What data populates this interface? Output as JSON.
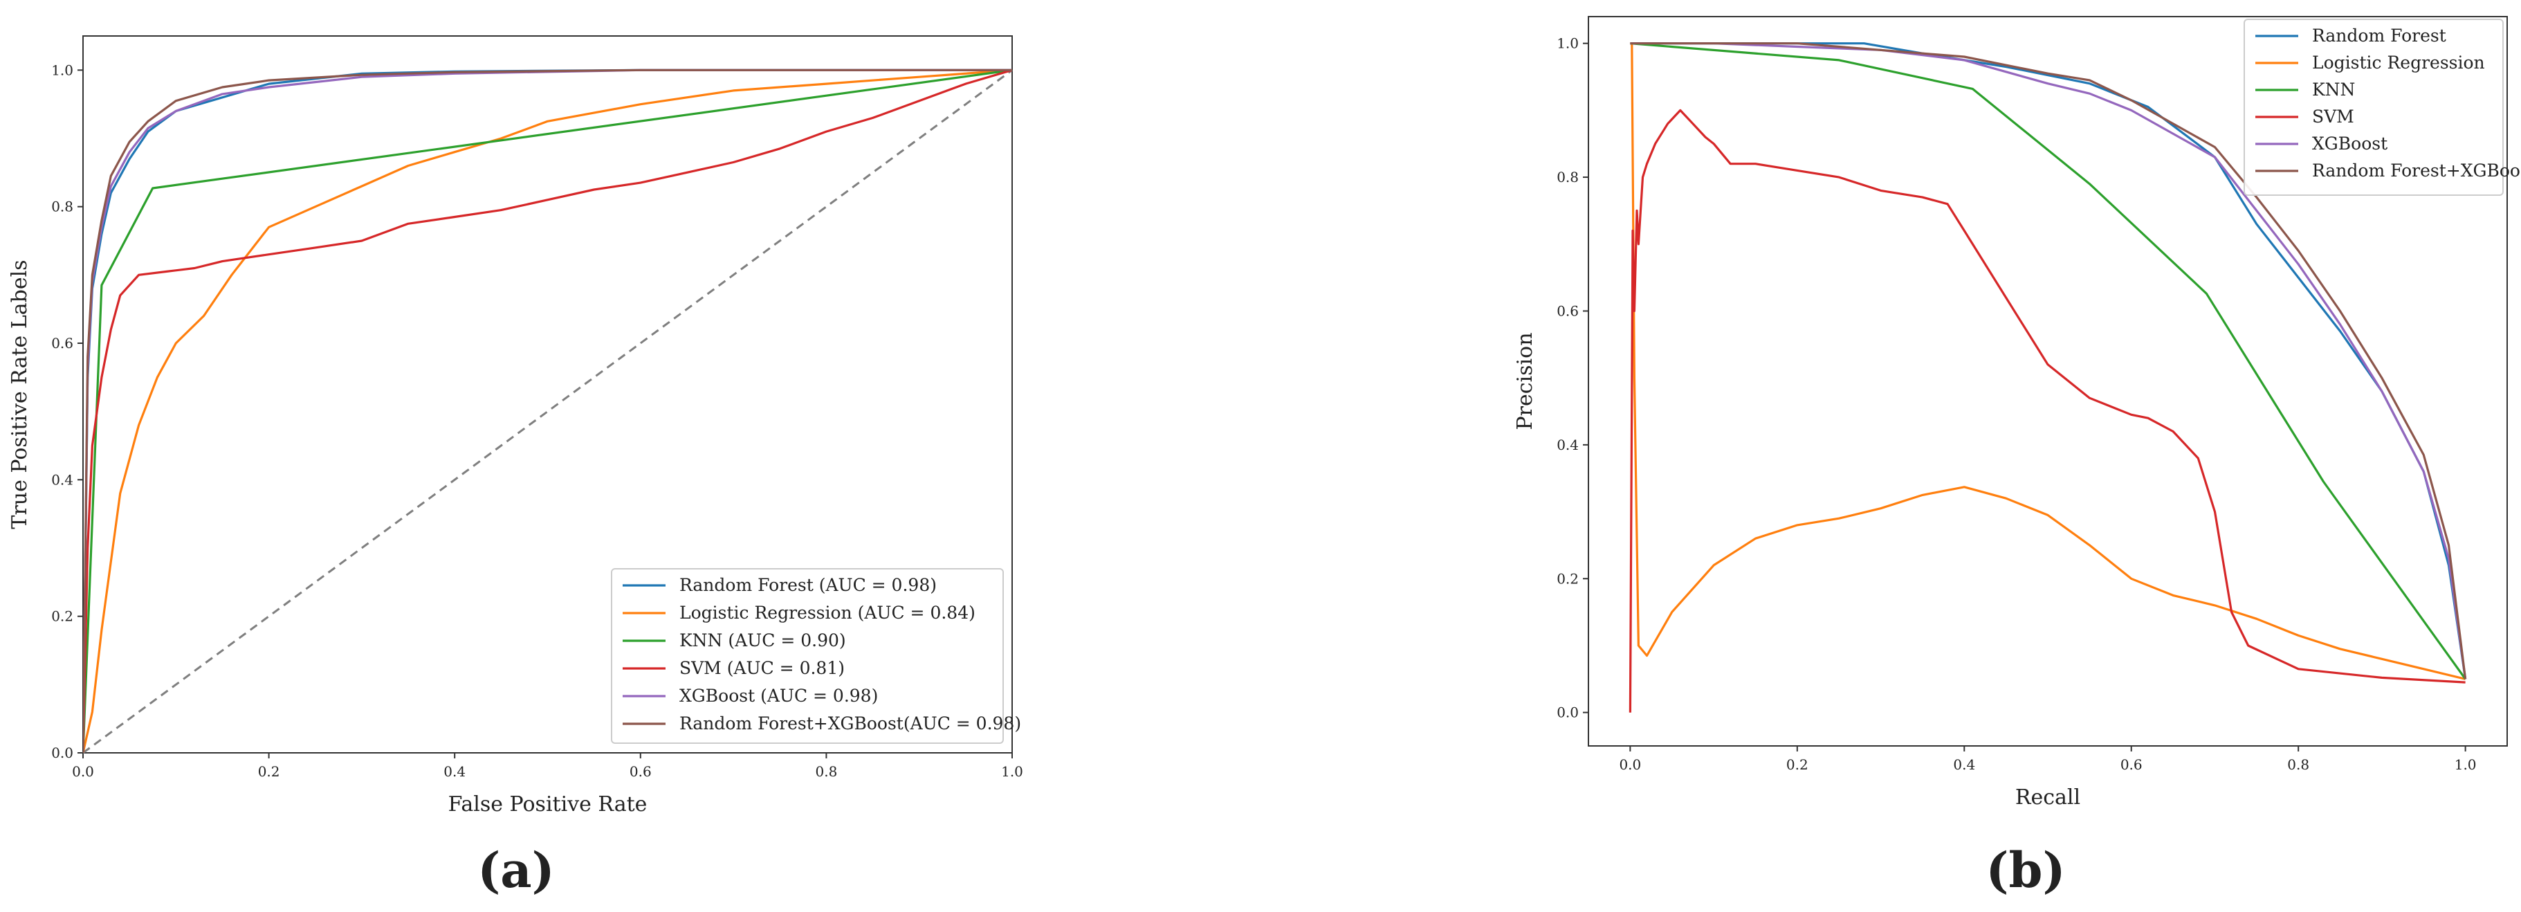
{
  "colors": {
    "random_forest": "#1f77b4",
    "logistic_regression": "#ff7f0e",
    "knn": "#2ca02c",
    "svm": "#d62728",
    "xgboost": "#9467bd",
    "rf_xgboost": "#8c564b",
    "diagonal": "#7f7f7f"
  },
  "panel_labels": [
    "(a)",
    "(b)"
  ],
  "chart_data": [
    {
      "type": "line",
      "panel": "(a)",
      "title": "",
      "xlabel": "False Positive Rate",
      "ylabel": "True Positive Rate Labels",
      "xlim": [
        0,
        1
      ],
      "ylim": [
        0,
        1.05
      ],
      "xticks": [
        "0.0",
        "0.2",
        "0.4",
        "0.6",
        "0.8",
        "1.0"
      ],
      "yticks": [
        "0.0",
        "0.2",
        "0.4",
        "0.6",
        "0.8",
        "1.0"
      ],
      "grid": false,
      "legend_position": "bottom-right",
      "reference_line": {
        "x": [
          0,
          1
        ],
        "y": [
          0,
          1
        ],
        "style": "dashed"
      },
      "series": [
        {
          "name": "Random Forest (AUC = 0.98)",
          "color_key": "random_forest",
          "x": [
            0,
            0.005,
            0.01,
            0.02,
            0.03,
            0.05,
            0.07,
            0.1,
            0.15,
            0.2,
            0.3,
            0.4,
            0.6,
            0.8,
            1.0
          ],
          "y": [
            0,
            0.55,
            0.68,
            0.76,
            0.82,
            0.87,
            0.91,
            0.94,
            0.96,
            0.98,
            0.995,
            0.998,
            1.0,
            1.0,
            1.0
          ]
        },
        {
          "name": "Logistic Regression (AUC = 0.84)",
          "color_key": "logistic_regression",
          "x": [
            0,
            0.01,
            0.02,
            0.04,
            0.06,
            0.08,
            0.1,
            0.13,
            0.16,
            0.2,
            0.25,
            0.3,
            0.35,
            0.4,
            0.45,
            0.5,
            0.6,
            0.7,
            0.8,
            0.9,
            1.0
          ],
          "y": [
            0,
            0.06,
            0.18,
            0.38,
            0.48,
            0.55,
            0.6,
            0.64,
            0.7,
            0.77,
            0.8,
            0.83,
            0.86,
            0.88,
            0.9,
            0.925,
            0.95,
            0.97,
            0.98,
            0.99,
            1.0
          ]
        },
        {
          "name": "KNN (AUC = 0.90)",
          "color_key": "knn",
          "x": [
            0,
            0.02,
            0.075,
            1.0
          ],
          "y": [
            0,
            0.685,
            0.827,
            1.0
          ]
        },
        {
          "name": "SVM (AUC = 0.81)",
          "color_key": "svm",
          "x": [
            0,
            0.005,
            0.01,
            0.02,
            0.03,
            0.04,
            0.06,
            0.09,
            0.12,
            0.15,
            0.2,
            0.25,
            0.3,
            0.35,
            0.4,
            0.45,
            0.5,
            0.55,
            0.6,
            0.65,
            0.7,
            0.75,
            0.8,
            0.85,
            0.9,
            0.95,
            1.0
          ],
          "y": [
            0,
            0.3,
            0.45,
            0.55,
            0.62,
            0.67,
            0.7,
            0.705,
            0.71,
            0.72,
            0.73,
            0.74,
            0.75,
            0.775,
            0.785,
            0.795,
            0.81,
            0.825,
            0.835,
            0.85,
            0.865,
            0.885,
            0.91,
            0.93,
            0.955,
            0.98,
            1.0
          ]
        },
        {
          "name": "XGBoost (AUC = 0.98)",
          "color_key": "xgboost",
          "x": [
            0,
            0.005,
            0.01,
            0.02,
            0.03,
            0.05,
            0.07,
            0.1,
            0.15,
            0.2,
            0.3,
            0.4,
            0.6,
            0.8,
            1.0
          ],
          "y": [
            0,
            0.56,
            0.69,
            0.77,
            0.83,
            0.88,
            0.915,
            0.94,
            0.965,
            0.975,
            0.99,
            0.995,
            1.0,
            1.0,
            1.0
          ]
        },
        {
          "name": "Random Forest+XGBoost(AUC = 0.98)",
          "color_key": "rf_xgboost",
          "x": [
            0,
            0.005,
            0.01,
            0.02,
            0.03,
            0.05,
            0.07,
            0.1,
            0.15,
            0.2,
            0.3,
            0.4,
            0.6,
            0.8,
            1.0
          ],
          "y": [
            0,
            0.58,
            0.7,
            0.78,
            0.845,
            0.895,
            0.925,
            0.955,
            0.975,
            0.985,
            0.993,
            0.997,
            1.0,
            1.0,
            1.0
          ]
        }
      ]
    },
    {
      "type": "line",
      "panel": "(b)",
      "title": "",
      "xlabel": "Recall",
      "ylabel": "Precision",
      "xlim": [
        -0.05,
        1.05
      ],
      "ylim": [
        -0.05,
        1.04
      ],
      "xticks": [
        "0.0",
        "0.2",
        "0.4",
        "0.6",
        "0.8",
        "1.0"
      ],
      "yticks": [
        "0.0",
        "0.2",
        "0.4",
        "0.6",
        "0.8",
        "1.0"
      ],
      "grid": false,
      "legend_position": "top-right",
      "series": [
        {
          "name": "Random Forest",
          "color_key": "random_forest",
          "x": [
            0,
            0.1,
            0.2,
            0.28,
            0.35,
            0.45,
            0.55,
            0.62,
            0.7,
            0.75,
            0.8,
            0.85,
            0.9,
            0.95,
            0.98,
            1.0
          ],
          "y": [
            1.0,
            1.0,
            1.0,
            1.0,
            0.985,
            0.965,
            0.94,
            0.905,
            0.83,
            0.73,
            0.65,
            0.57,
            0.48,
            0.36,
            0.22,
            0.05
          ]
        },
        {
          "name": "Logistic Regression",
          "color_key": "logistic_regression",
          "x": [
            0,
            0.002,
            0.005,
            0.01,
            0.02,
            0.05,
            0.1,
            0.15,
            0.2,
            0.25,
            0.3,
            0.35,
            0.4,
            0.45,
            0.5,
            0.55,
            0.6,
            0.65,
            0.7,
            0.75,
            0.8,
            0.85,
            0.9,
            0.95,
            1.0
          ],
          "y": [
            1.0,
            1.0,
            0.5,
            0.1,
            0.085,
            0.15,
            0.22,
            0.26,
            0.28,
            0.29,
            0.305,
            0.325,
            0.337,
            0.32,
            0.295,
            0.25,
            0.2,
            0.175,
            0.16,
            0.14,
            0.115,
            0.095,
            0.08,
            0.065,
            0.05
          ]
        },
        {
          "name": "KNN",
          "color_key": "knn",
          "x": [
            0,
            0.25,
            0.41,
            0.55,
            0.69,
            0.83,
            1.0
          ],
          "y": [
            1.0,
            0.975,
            0.932,
            0.79,
            0.626,
            0.345,
            0.05
          ]
        },
        {
          "name": "SVM",
          "color_key": "svm",
          "x": [
            0,
            0.003,
            0.005,
            0.008,
            0.01,
            0.015,
            0.02,
            0.03,
            0.045,
            0.06,
            0.075,
            0.09,
            0.1,
            0.12,
            0.15,
            0.2,
            0.25,
            0.3,
            0.35,
            0.38,
            0.4,
            0.45,
            0.5,
            0.55,
            0.6,
            0.62,
            0.65,
            0.68,
            0.7,
            0.72,
            0.74,
            0.8,
            0.9,
            1.0
          ],
          "y": [
            0.0,
            0.72,
            0.6,
            0.75,
            0.7,
            0.8,
            0.82,
            0.85,
            0.88,
            0.9,
            0.88,
            0.86,
            0.85,
            0.82,
            0.82,
            0.81,
            0.8,
            0.78,
            0.77,
            0.76,
            0.72,
            0.62,
            0.52,
            0.47,
            0.445,
            0.44,
            0.42,
            0.38,
            0.3,
            0.15,
            0.1,
            0.065,
            0.052,
            0.045
          ]
        },
        {
          "name": "XGBoost",
          "color_key": "xgboost",
          "x": [
            0,
            0.1,
            0.2,
            0.3,
            0.4,
            0.5,
            0.55,
            0.6,
            0.7,
            0.75,
            0.8,
            0.85,
            0.9,
            0.95,
            0.98,
            1.0
          ],
          "y": [
            1.0,
            1.0,
            0.995,
            0.99,
            0.975,
            0.94,
            0.925,
            0.9,
            0.83,
            0.75,
            0.67,
            0.58,
            0.48,
            0.36,
            0.23,
            0.05
          ]
        },
        {
          "name": "Random Forest+XGBoost",
          "color_key": "rf_xgboost",
          "x": [
            0,
            0.1,
            0.2,
            0.3,
            0.4,
            0.5,
            0.55,
            0.6,
            0.7,
            0.75,
            0.8,
            0.85,
            0.9,
            0.95,
            0.98,
            1.0
          ],
          "y": [
            1.0,
            1.0,
            1.0,
            0.99,
            0.98,
            0.955,
            0.945,
            0.915,
            0.845,
            0.77,
            0.69,
            0.6,
            0.5,
            0.385,
            0.25,
            0.05
          ]
        }
      ]
    }
  ]
}
